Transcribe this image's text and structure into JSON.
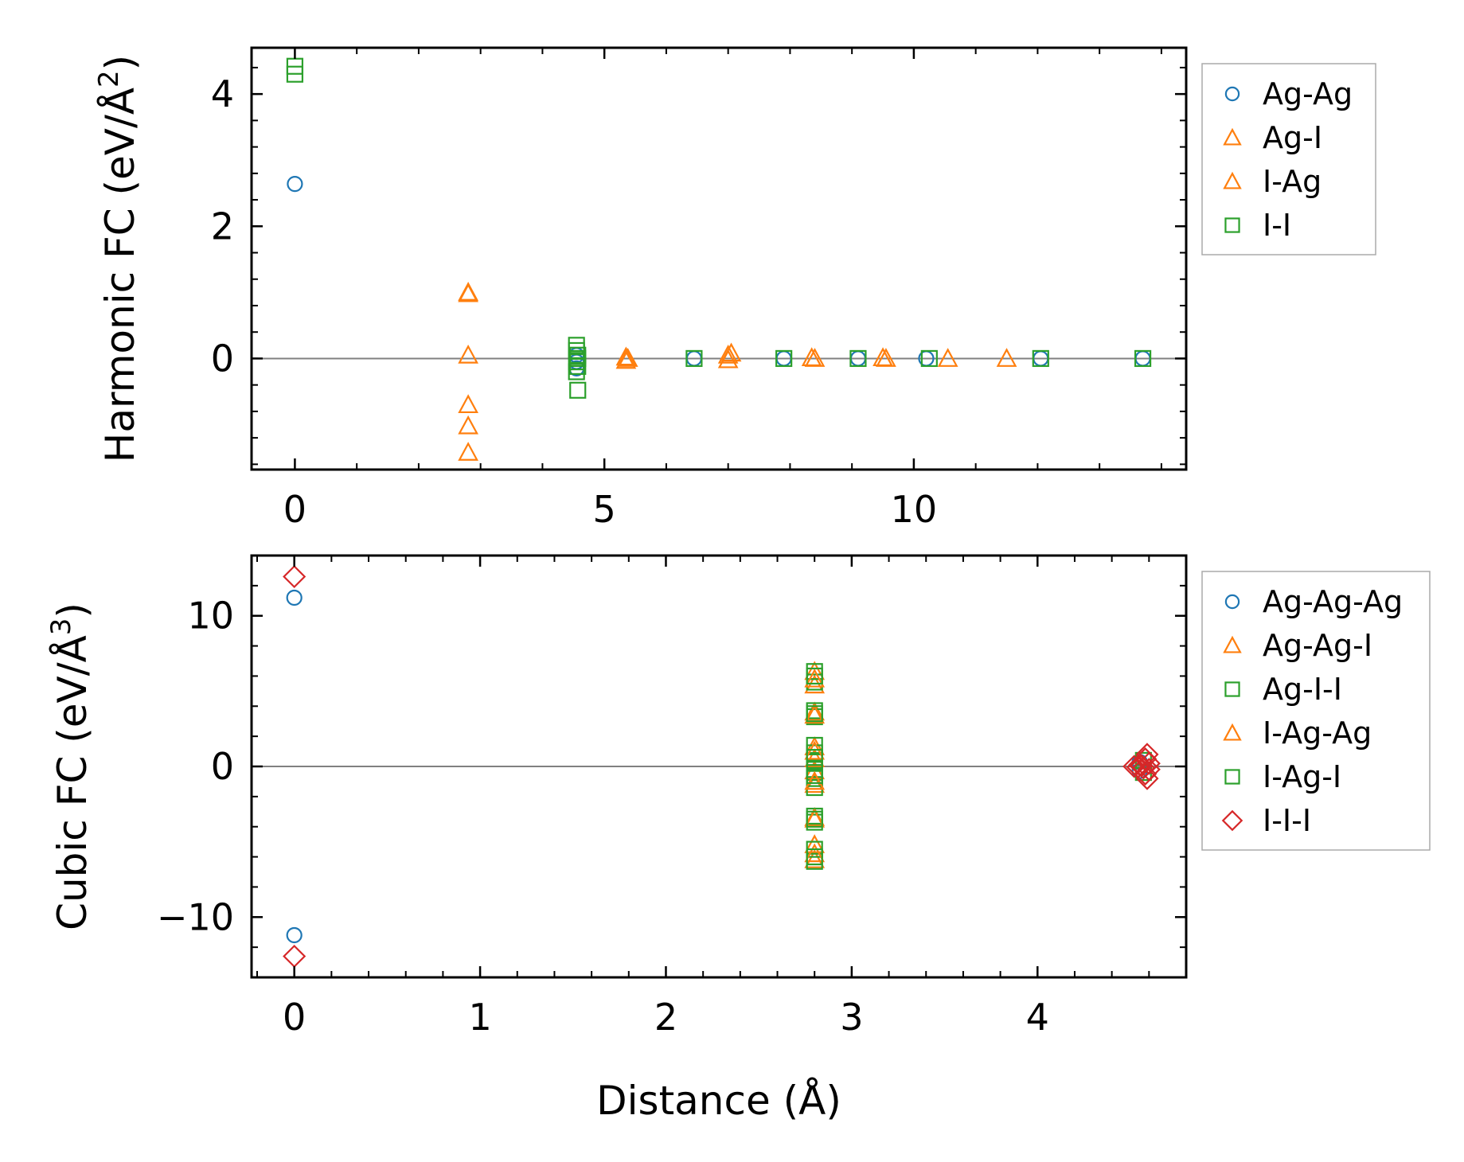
{
  "chart_data": [
    {
      "type": "scatter",
      "title": "",
      "xlabel": "",
      "ylabel": "Harmonic FC (eV/Å²)",
      "ylabel_base": "Harmonic FC (eV/Å",
      "ylabel_sup": "2",
      "ylabel_end": ")",
      "xlim": [
        -0.7,
        14.4
      ],
      "ylim": [
        -1.68,
        4.7
      ],
      "xticks": [
        {
          "v": 0,
          "label": "0"
        },
        {
          "v": 5,
          "label": "5"
        },
        {
          "v": 10,
          "label": "10"
        }
      ],
      "yticks": [
        {
          "v": 0,
          "label": "0"
        },
        {
          "v": 2,
          "label": "2"
        },
        {
          "v": 4,
          "label": "4"
        }
      ],
      "zero_line": true,
      "legend_position": "outside-right-top",
      "series": [
        {
          "name": "Ag-Ag",
          "marker": "circle",
          "color": "#1f77b4",
          "points": [
            [
              0,
              2.64
            ],
            [
              4.55,
              -0.05
            ],
            [
              4.55,
              0.05
            ],
            [
              4.55,
              -0.15
            ],
            [
              6.45,
              0
            ],
            [
              7.9,
              0
            ],
            [
              9.1,
              0
            ],
            [
              10.2,
              0
            ],
            [
              12.05,
              0
            ],
            [
              13.7,
              0
            ]
          ]
        },
        {
          "name": "Ag-I",
          "marker": "triangle",
          "color": "#ff7f0e",
          "points": [
            [
              2.8,
              1.0
            ],
            [
              2.8,
              0.05
            ],
            [
              2.8,
              -0.7
            ],
            [
              2.8,
              -1.02
            ],
            [
              2.8,
              -1.42
            ],
            [
              5.35,
              0.02
            ],
            [
              5.35,
              -0.03
            ],
            [
              7.0,
              0.05
            ],
            [
              7.0,
              -0.02
            ],
            [
              8.35,
              0.01
            ],
            [
              9.5,
              0.01
            ],
            [
              10.55,
              0.0
            ],
            [
              11.5,
              0.0
            ]
          ]
        },
        {
          "name": "I-Ag",
          "marker": "triangle",
          "color": "#ff7f0e",
          "points": [
            [
              2.8,
              0.98
            ],
            [
              5.38,
              0.0
            ],
            [
              7.05,
              0.08
            ],
            [
              8.4,
              0.0
            ],
            [
              9.55,
              0.0
            ]
          ]
        },
        {
          "name": "I-I",
          "marker": "square",
          "color": "#2ca02c",
          "points": [
            [
              0,
              4.42
            ],
            [
              0,
              4.3
            ],
            [
              4.55,
              0.2
            ],
            [
              4.55,
              0.12
            ],
            [
              4.57,
              0.05
            ],
            [
              4.57,
              0.0
            ],
            [
              4.55,
              -0.05
            ],
            [
              4.57,
              -0.12
            ],
            [
              4.55,
              -0.2
            ],
            [
              4.57,
              -0.48
            ],
            [
              6.45,
              0
            ],
            [
              7.9,
              0
            ],
            [
              9.1,
              0
            ],
            [
              10.25,
              0
            ],
            [
              12.05,
              0
            ],
            [
              13.7,
              0
            ]
          ]
        }
      ]
    },
    {
      "type": "scatter",
      "title": "",
      "xlabel": "Distance (Å)",
      "ylabel": "Cubic FC (eV/Å³)",
      "ylabel_base": "Cubic FC (eV/Å",
      "ylabel_sup": "3",
      "ylabel_end": ")",
      "xlim": [
        -0.23,
        4.8
      ],
      "ylim": [
        -14,
        14
      ],
      "xticks": [
        {
          "v": 0,
          "label": "0"
        },
        {
          "v": 1,
          "label": "1"
        },
        {
          "v": 2,
          "label": "2"
        },
        {
          "v": 3,
          "label": "3"
        },
        {
          "v": 4,
          "label": "4"
        }
      ],
      "yticks": [
        {
          "v": -10,
          "label": "−10"
        },
        {
          "v": 0,
          "label": "0"
        },
        {
          "v": 10,
          "label": "10"
        }
      ],
      "zero_line": true,
      "legend_position": "outside-right-top",
      "series": [
        {
          "name": "Ag-Ag-Ag",
          "marker": "circle",
          "color": "#1f77b4",
          "points": [
            [
              0,
              11.2
            ],
            [
              0,
              -11.2
            ],
            [
              4.55,
              0.3
            ],
            [
              4.55,
              -0.3
            ]
          ]
        },
        {
          "name": "Ag-Ag-I",
          "marker": "triangle",
          "color": "#ff7f0e",
          "points": [
            [
              2.8,
              6.3
            ],
            [
              2.8,
              5.4
            ],
            [
              2.8,
              3.6
            ],
            [
              2.8,
              1.3
            ],
            [
              2.8,
              0.5
            ],
            [
              2.8,
              -0.3
            ],
            [
              2.8,
              -1.2
            ],
            [
              2.8,
              -3.4
            ],
            [
              2.8,
              -5.2
            ],
            [
              2.8,
              -6.2
            ]
          ]
        },
        {
          "name": "Ag-I-I",
          "marker": "square",
          "color": "#2ca02c",
          "points": [
            [
              2.8,
              6.3
            ],
            [
              2.8,
              5.6
            ],
            [
              2.8,
              3.7
            ],
            [
              2.8,
              3.3
            ],
            [
              2.8,
              1.4
            ],
            [
              2.8,
              0.9
            ],
            [
              2.8,
              0.3
            ],
            [
              2.8,
              -0.2
            ],
            [
              2.8,
              -0.8
            ],
            [
              2.8,
              -1.4
            ],
            [
              2.8,
              -3.3
            ],
            [
              2.8,
              -3.7
            ],
            [
              2.8,
              -5.5
            ],
            [
              2.8,
              -6.3
            ]
          ]
        },
        {
          "name": "I-Ag-Ag",
          "marker": "triangle",
          "color": "#ff7f0e",
          "points": [
            [
              2.8,
              5.8
            ],
            [
              2.8,
              3.4
            ],
            [
              2.8,
              1.0
            ],
            [
              2.8,
              -1.0
            ],
            [
              2.8,
              -3.5
            ],
            [
              2.8,
              -5.8
            ]
          ]
        },
        {
          "name": "I-Ag-I",
          "marker": "square",
          "color": "#2ca02c",
          "points": [
            [
              2.8,
              6.0
            ],
            [
              2.8,
              3.5
            ],
            [
              2.8,
              0.6
            ],
            [
              2.8,
              -0.6
            ],
            [
              2.8,
              -3.5
            ],
            [
              2.8,
              -6.0
            ],
            [
              4.57,
              0.4
            ],
            [
              4.57,
              -0.4
            ]
          ]
        },
        {
          "name": "I-I-I",
          "marker": "diamond",
          "color": "#d62728",
          "points": [
            [
              0,
              12.6
            ],
            [
              0,
              -12.6
            ],
            [
              4.52,
              0
            ],
            [
              4.55,
              0.1
            ],
            [
              4.57,
              -0.1
            ],
            [
              4.58,
              0.5
            ],
            [
              4.58,
              -0.5
            ],
            [
              4.59,
              0.8
            ],
            [
              4.59,
              -0.8
            ],
            [
              4.6,
              0.2
            ],
            [
              4.6,
              -0.2
            ],
            [
              4.54,
              -0.05
            ],
            [
              4.56,
              0.05
            ]
          ]
        }
      ]
    }
  ]
}
